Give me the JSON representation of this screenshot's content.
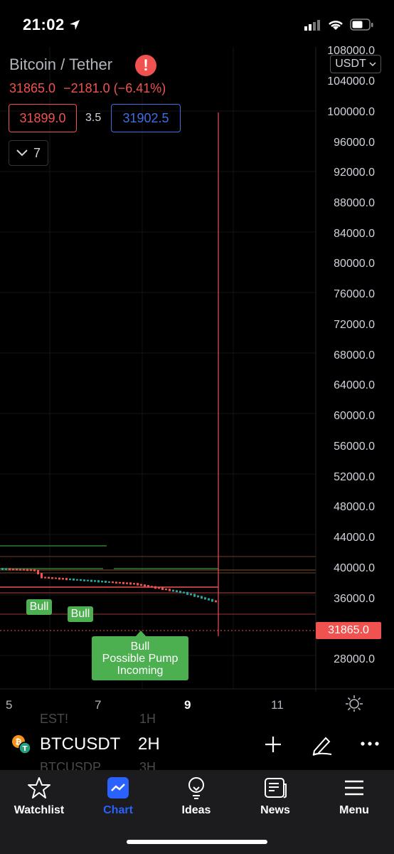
{
  "status_bar": {
    "time": "21:02"
  },
  "header": {
    "title": "Bitcoin / Tether",
    "last_price": "31865.0",
    "change_abs": "−2181.0",
    "change_pct": "(−6.41%)",
    "bid": "31899.0",
    "spread": "3.5",
    "ask": "31902.5",
    "indicators_count": "7",
    "currency": "USDT"
  },
  "price_axis": {
    "ticks": [
      "108000.0",
      "104000.0",
      "100000.0",
      "96000.0",
      "92000.0",
      "88000.0",
      "84000.0",
      "80000.0",
      "76000.0",
      "72000.0",
      "68000.0",
      "64000.0",
      "60000.0",
      "56000.0",
      "52000.0",
      "48000.0",
      "44000.0",
      "40000.0",
      "36000.0",
      "28000.0"
    ],
    "last_price_tag": "31865.0"
  },
  "time_axis": {
    "ticks": [
      "5",
      "7",
      "9",
      "11"
    ]
  },
  "annotations": {
    "bull_1": "Bull",
    "bull_2": "Bull",
    "bull_big_line1": "Bull",
    "bull_big_line2": "Possible Pump",
    "bull_big_line3": "Incoming"
  },
  "colors": {
    "accent": "#2962ff",
    "down": "#f0524f",
    "up": "#26a69a",
    "bull": "#4caf50"
  },
  "symbol_bar": {
    "ghost_prev_symbol": "EST!",
    "ghost_prev_interval": "1H",
    "symbol": "BTCUSDT",
    "interval": "2H",
    "ghost_next_symbol": "BTCUSDP",
    "ghost_next_interval": "3H"
  },
  "tabs": [
    {
      "label": "Watchlist",
      "icon": "star-icon"
    },
    {
      "label": "Chart",
      "icon": "chart-icon",
      "active": true
    },
    {
      "label": "Ideas",
      "icon": "lightbulb-icon"
    },
    {
      "label": "News",
      "icon": "news-icon"
    },
    {
      "label": "Menu",
      "icon": "menu-icon"
    }
  ]
}
